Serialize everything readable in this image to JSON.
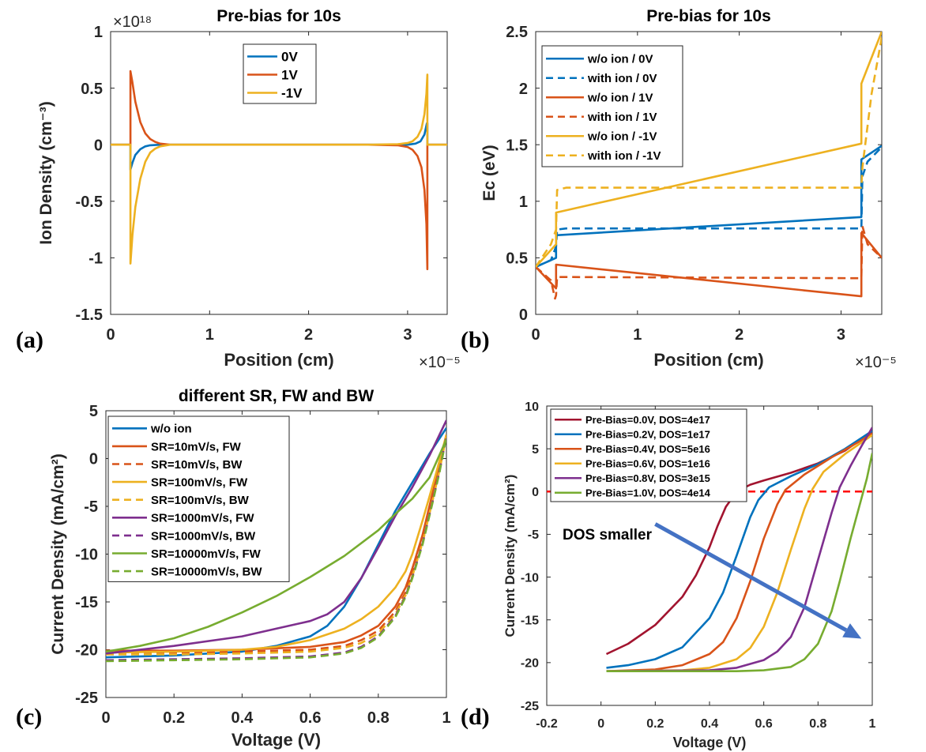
{
  "figure": {
    "panel_labels": [
      "(a)",
      "(b)",
      "(c)",
      "(d)"
    ]
  },
  "chart_data": [
    {
      "type": "line",
      "title": "Pre-bias for 10s",
      "xlabel": "Position (cm)",
      "ylabel": "Ion Density (cm⁻³)",
      "x_multiplier": "×10⁻⁵",
      "y_multiplier": "×10¹⁸",
      "xlim": [
        0,
        3.4
      ],
      "ylim": [
        -1.5,
        1
      ],
      "xticks": [
        0,
        1,
        2,
        3
      ],
      "xtick_labels": [
        "0",
        "1",
        "2",
        "3"
      ],
      "yticks": [
        1,
        0.5,
        0,
        -0.5,
        -1,
        -1.5
      ],
      "ytick_labels": [
        "1",
        "0.5",
        "0",
        "-0.5",
        "-1",
        "-1.5"
      ],
      "grid": false,
      "legend_position": "top-center",
      "series": [
        {
          "name": "0V",
          "color": "#0072BD",
          "dash": "solid",
          "x": [
            0,
            0.2,
            0.2,
            0.22,
            0.25,
            0.3,
            0.35,
            0.4,
            0.5,
            0.7,
            2.5,
            2.9,
            3.0,
            3.08,
            3.13,
            3.17,
            3.195,
            3.2,
            3.2,
            3.4
          ],
          "y": [
            0,
            0,
            -0.22,
            -0.16,
            -0.09,
            -0.04,
            -0.015,
            -0.005,
            0,
            0,
            0,
            0,
            0,
            0.01,
            0.03,
            0.09,
            0.19,
            0.19,
            0,
            0
          ]
        },
        {
          "name": "1V",
          "color": "#D95319",
          "dash": "solid",
          "x": [
            0,
            0.2,
            0.2,
            0.22,
            0.25,
            0.3,
            0.35,
            0.4,
            0.45,
            0.5,
            0.6,
            2.6,
            2.9,
            3.0,
            3.05,
            3.1,
            3.14,
            3.17,
            3.19,
            3.2,
            3.2,
            3.4
          ],
          "y": [
            0,
            0,
            0.65,
            0.55,
            0.38,
            0.2,
            0.1,
            0.05,
            0.025,
            0.01,
            0,
            0,
            -0.005,
            -0.02,
            -0.045,
            -0.1,
            -0.2,
            -0.4,
            -0.7,
            -1.1,
            0,
            0
          ]
        },
        {
          "name": "-1V",
          "color": "#EDB120",
          "dash": "solid",
          "x": [
            0,
            0.2,
            0.2,
            0.22,
            0.25,
            0.3,
            0.35,
            0.4,
            0.45,
            0.5,
            0.6,
            2.6,
            2.9,
            3.0,
            3.05,
            3.1,
            3.14,
            3.17,
            3.19,
            3.2,
            3.2,
            3.4
          ],
          "y": [
            0,
            0,
            -1.05,
            -0.8,
            -0.55,
            -0.3,
            -0.15,
            -0.07,
            -0.035,
            -0.015,
            0,
            0,
            0.005,
            0.015,
            0.03,
            0.07,
            0.14,
            0.27,
            0.45,
            0.62,
            0,
            0
          ]
        }
      ]
    },
    {
      "type": "line",
      "title": "Pre-bias for 10s",
      "xlabel": "Position (cm)",
      "ylabel": "Ec (eV)",
      "x_multiplier": "×10⁻⁵",
      "xlim": [
        0,
        3.4
      ],
      "ylim": [
        0,
        2.5
      ],
      "xticks": [
        0,
        1,
        2,
        3
      ],
      "xtick_labels": [
        "0",
        "1",
        "2",
        "3"
      ],
      "yticks": [
        2.5,
        2,
        1.5,
        1,
        0.5,
        0
      ],
      "ytick_labels": [
        "2.5",
        "2",
        "1.5",
        "1",
        "0.5",
        "0"
      ],
      "grid": false,
      "legend_position": "top-left",
      "series": [
        {
          "name": "w/o ion / 0V",
          "color": "#0072BD",
          "dash": "solid",
          "x": [
            0,
            0.2,
            0.2,
            3.2,
            3.2,
            3.4
          ],
          "y": [
            0.42,
            0.5,
            0.7,
            0.86,
            1.37,
            1.49
          ]
        },
        {
          "name": "with ion / 0V",
          "color": "#0072BD",
          "dash": "dashed",
          "x": [
            0,
            0.15,
            0.2,
            0.21,
            0.3,
            3.2,
            3.21,
            3.26,
            3.4
          ],
          "y": [
            0.42,
            0.48,
            0.6,
            0.75,
            0.76,
            0.76,
            1.22,
            1.35,
            1.48
          ]
        },
        {
          "name": "w/o ion / 1V",
          "color": "#D95319",
          "dash": "solid",
          "x": [
            0,
            0.2,
            0.2,
            3.2,
            3.2,
            3.4
          ],
          "y": [
            0.42,
            0.23,
            0.44,
            0.16,
            0.72,
            0.5
          ]
        },
        {
          "name": "with ion / 1V",
          "color": "#D95319",
          "dash": "dashed",
          "x": [
            0,
            0.15,
            0.19,
            0.2,
            0.21,
            0.3,
            3.2,
            3.21,
            3.26,
            3.4
          ],
          "y": [
            0.42,
            0.3,
            0.14,
            0.17,
            0.33,
            0.33,
            0.32,
            0.78,
            0.62,
            0.5
          ]
        },
        {
          "name": "w/o ion / -1V",
          "color": "#EDB120",
          "dash": "solid",
          "x": [
            0,
            0.2,
            0.2,
            3.2,
            3.2,
            3.4
          ],
          "y": [
            0.42,
            0.62,
            0.9,
            1.51,
            2.04,
            2.5
          ]
        },
        {
          "name": "with ion / -1V",
          "color": "#EDB120",
          "dash": "dashed",
          "x": [
            0,
            0.15,
            0.2,
            0.21,
            0.3,
            3.2,
            3.21,
            3.3,
            3.4
          ],
          "y": [
            0.42,
            0.62,
            0.75,
            1.1,
            1.12,
            1.12,
            1.3,
            1.95,
            2.45
          ]
        }
      ]
    },
    {
      "type": "line",
      "title": "different SR, FW and BW",
      "xlabel": "Voltage (V)",
      "ylabel": "Current Density (mA/cm²)",
      "xlim": [
        0,
        1
      ],
      "ylim": [
        -25,
        5
      ],
      "xticks": [
        0,
        0.2,
        0.4,
        0.6,
        0.8,
        1
      ],
      "xtick_labels": [
        "0",
        "0.2",
        "0.4",
        "0.6",
        "0.8",
        "1"
      ],
      "yticks": [
        5,
        0,
        -5,
        -10,
        -15,
        -20,
        -25
      ],
      "ytick_labels": [
        "5",
        "0",
        "-5",
        "-10",
        "-15",
        "-20",
        "-25"
      ],
      "grid": false,
      "legend_position": "top-left",
      "series": [
        {
          "name": "w/o ion",
          "color": "#0072BD",
          "dash": "solid",
          "x": [
            0,
            0.2,
            0.4,
            0.5,
            0.6,
            0.65,
            0.7,
            0.75,
            0.8,
            0.85,
            0.9,
            0.95,
            1.0
          ],
          "y": [
            -20.8,
            -20.6,
            -20.2,
            -19.6,
            -18.6,
            -17.5,
            -15.5,
            -12.5,
            -9,
            -5.5,
            -2.5,
            0.5,
            3.2
          ]
        },
        {
          "name": "SR=10mV/s, FW",
          "color": "#D95319",
          "dash": "solid",
          "x": [
            0,
            0.2,
            0.4,
            0.6,
            0.7,
            0.75,
            0.8,
            0.85,
            0.88,
            0.9,
            0.93,
            0.96,
            0.98,
            1.0
          ],
          "y": [
            -20.1,
            -20.1,
            -20.0,
            -19.7,
            -19.2,
            -18.5,
            -17.5,
            -15.5,
            -13.5,
            -11.5,
            -8.0,
            -3.5,
            -0.5,
            2.5
          ]
        },
        {
          "name": "SR=10mV/s, BW",
          "color": "#D95319",
          "dash": "dashed",
          "x": [
            0,
            0.2,
            0.4,
            0.6,
            0.7,
            0.75,
            0.8,
            0.85,
            0.88,
            0.9,
            0.93,
            0.96,
            0.98,
            1.0
          ],
          "y": [
            -20.3,
            -20.3,
            -20.2,
            -20.0,
            -19.6,
            -19.0,
            -18.0,
            -16.0,
            -14.0,
            -12.0,
            -8.5,
            -4.0,
            -1.0,
            2.5
          ]
        },
        {
          "name": "SR=100mV/s, FW",
          "color": "#EDB120",
          "dash": "solid",
          "x": [
            0,
            0.2,
            0.4,
            0.5,
            0.6,
            0.7,
            0.75,
            0.8,
            0.85,
            0.88,
            0.9,
            0.93,
            0.95,
            0.97,
            1.0
          ],
          "y": [
            -20.3,
            -20.2,
            -20.0,
            -19.7,
            -19.0,
            -17.8,
            -16.8,
            -15.5,
            -13.5,
            -11.8,
            -10.0,
            -6.5,
            -4.0,
            -1.5,
            2.5
          ]
        },
        {
          "name": "SR=100mV/s, BW",
          "color": "#EDB120",
          "dash": "dashed",
          "x": [
            0,
            0.2,
            0.4,
            0.6,
            0.7,
            0.75,
            0.8,
            0.85,
            0.88,
            0.9,
            0.93,
            0.96,
            0.98,
            1.0
          ],
          "y": [
            -20.5,
            -20.5,
            -20.4,
            -20.2,
            -19.8,
            -19.3,
            -18.3,
            -16.3,
            -14.3,
            -12.3,
            -8.8,
            -4.3,
            -1.2,
            2.4
          ]
        },
        {
          "name": "SR=1000mV/s, FW",
          "color": "#7E2F8E",
          "dash": "solid",
          "x": [
            0,
            0.2,
            0.4,
            0.5,
            0.6,
            0.65,
            0.7,
            0.75,
            0.8,
            0.85,
            0.9,
            0.95,
            1.0
          ],
          "y": [
            -20.4,
            -19.6,
            -18.6,
            -17.8,
            -17.0,
            -16.3,
            -15.0,
            -12.5,
            -9.3,
            -6.0,
            -3.0,
            0.3,
            4.0
          ]
        },
        {
          "name": "SR=1000mV/s, BW",
          "color": "#7E2F8E",
          "dash": "dashed",
          "x": [
            0,
            0.2,
            0.4,
            0.6,
            0.7,
            0.75,
            0.8,
            0.85,
            0.88,
            0.9,
            0.93,
            0.96,
            0.98,
            1.0
          ],
          "y": [
            -21.1,
            -21.0,
            -20.9,
            -20.7,
            -20.3,
            -19.7,
            -18.6,
            -16.5,
            -14.4,
            -12.4,
            -8.9,
            -4.4,
            -1.3,
            2.4
          ]
        },
        {
          "name": "SR=10000mV/s, FW",
          "color": "#77AC30",
          "dash": "solid",
          "x": [
            0,
            0.1,
            0.2,
            0.3,
            0.4,
            0.5,
            0.6,
            0.7,
            0.8,
            0.85,
            0.9,
            0.95,
            1.0
          ],
          "y": [
            -20.2,
            -19.6,
            -18.8,
            -17.6,
            -16.1,
            -14.4,
            -12.4,
            -10.2,
            -7.5,
            -5.8,
            -4.2,
            -2.0,
            2.0
          ]
        },
        {
          "name": "SR=10000mV/s, BW",
          "color": "#77AC30",
          "dash": "dashed",
          "x": [
            0,
            0.2,
            0.4,
            0.6,
            0.7,
            0.75,
            0.8,
            0.85,
            0.88,
            0.9,
            0.93,
            0.96,
            0.98,
            1.0
          ],
          "y": [
            -21.2,
            -21.1,
            -21.0,
            -20.8,
            -20.4,
            -19.8,
            -18.7,
            -16.6,
            -14.5,
            -12.5,
            -9.0,
            -4.5,
            -1.4,
            2.3
          ]
        }
      ]
    },
    {
      "type": "line",
      "title": "",
      "xlabel": "Voltage (V)",
      "ylabel": "Current Density (mA/cm²)",
      "xlim": [
        -0.2,
        1
      ],
      "ylim": [
        -25,
        10
      ],
      "xticks": [
        -0.2,
        0,
        0.2,
        0.4,
        0.6,
        0.8,
        1
      ],
      "xtick_labels": [
        "-0.2",
        "0",
        "0.2",
        "0.4",
        "0.6",
        "0.8",
        "1"
      ],
      "yticks": [
        10,
        5,
        0,
        -5,
        -10,
        -15,
        -20,
        -25
      ],
      "ytick_labels": [
        "10",
        "5",
        "0",
        "-5",
        "-10",
        "-15",
        "-20",
        "-25"
      ],
      "grid": false,
      "legend_position": "top-left",
      "annotation": {
        "text": "DOS smaller",
        "arrow_from": [
          0.2,
          -3.8
        ],
        "arrow_to": [
          0.96,
          -17.2
        ],
        "arrow_color": "#4472C4"
      },
      "reference_line": {
        "y": 0,
        "color": "#FF0000",
        "dash": "dashed"
      },
      "series": [
        {
          "name": "Pre-Bias=0.0V, DOS=4e17",
          "color": "#A2142F",
          "dash": "solid",
          "x": [
            0.02,
            0.1,
            0.2,
            0.3,
            0.35,
            0.4,
            0.43,
            0.46,
            0.5,
            0.55,
            0.6,
            0.7,
            0.8,
            0.9,
            1.0
          ],
          "y": [
            -19.0,
            -17.8,
            -15.6,
            -12.3,
            -9.8,
            -6.5,
            -4.0,
            -1.8,
            0,
            0.8,
            1.3,
            2.2,
            3.3,
            4.8,
            7.0
          ]
        },
        {
          "name": "Pre-Bias=0.2V, DOS=1e17",
          "color": "#0072BD",
          "dash": "solid",
          "x": [
            0.02,
            0.1,
            0.2,
            0.3,
            0.4,
            0.45,
            0.5,
            0.55,
            0.58,
            0.62,
            0.7,
            0.8,
            0.9,
            1.0
          ],
          "y": [
            -20.6,
            -20.3,
            -19.6,
            -18.2,
            -14.8,
            -11.8,
            -7.5,
            -3.0,
            -1.0,
            0.5,
            1.8,
            3.2,
            5.0,
            7.1
          ]
        },
        {
          "name": "Pre-Bias=0.4V, DOS=5e16",
          "color": "#D95319",
          "dash": "solid",
          "x": [
            0.02,
            0.2,
            0.3,
            0.4,
            0.45,
            0.5,
            0.55,
            0.6,
            0.65,
            0.68,
            0.75,
            0.85,
            0.95,
            1.0
          ],
          "y": [
            -21.0,
            -20.8,
            -20.3,
            -19.0,
            -17.6,
            -14.8,
            -10.5,
            -5.5,
            -1.5,
            0.2,
            2.0,
            4.0,
            5.8,
            6.8
          ]
        },
        {
          "name": "Pre-Bias=0.6V, DOS=1e16",
          "color": "#EDB120",
          "dash": "solid",
          "x": [
            0.02,
            0.3,
            0.4,
            0.5,
            0.55,
            0.6,
            0.65,
            0.7,
            0.75,
            0.78,
            0.82,
            0.9,
            1.0
          ],
          "y": [
            -21.0,
            -20.9,
            -20.6,
            -19.6,
            -18.3,
            -15.8,
            -11.8,
            -6.8,
            -2.0,
            0.3,
            2.3,
            4.4,
            6.6
          ]
        },
        {
          "name": "Pre-Bias=0.8V, DOS=3e15",
          "color": "#7E2F8E",
          "dash": "solid",
          "x": [
            0.02,
            0.4,
            0.5,
            0.6,
            0.65,
            0.7,
            0.75,
            0.8,
            0.85,
            0.88,
            0.92,
            0.96,
            1.0
          ],
          "y": [
            -21.0,
            -20.9,
            -20.6,
            -19.7,
            -18.7,
            -17.0,
            -13.5,
            -8.0,
            -2.5,
            0.5,
            3.0,
            5.3,
            7.5
          ]
        },
        {
          "name": "Pre-Bias=1.0V, DOS=4e14",
          "color": "#77AC30",
          "dash": "solid",
          "x": [
            0.02,
            0.5,
            0.6,
            0.7,
            0.75,
            0.8,
            0.85,
            0.88,
            0.92,
            0.95,
            0.98,
            1.0
          ],
          "y": [
            -21.0,
            -21.0,
            -20.9,
            -20.5,
            -19.6,
            -17.8,
            -14.0,
            -10.5,
            -5.5,
            -2.0,
            1.5,
            4.5
          ]
        }
      ]
    }
  ]
}
